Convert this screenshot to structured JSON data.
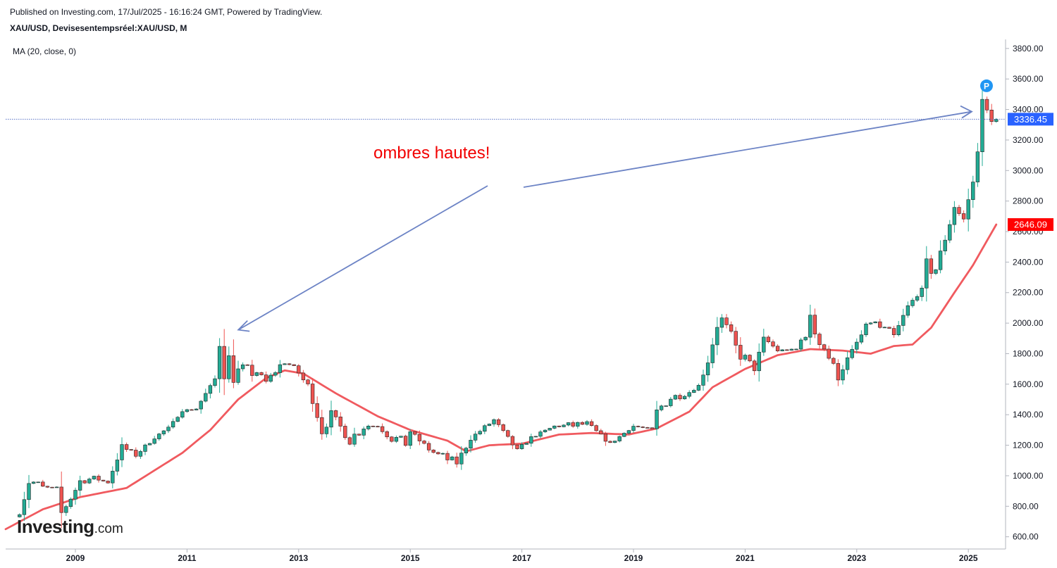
{
  "header": {
    "published": "Published on Investing.com, 17/Jul/2025 - 16:16:24 GMT, Powered by TradingView.",
    "symbol": "XAU/USD, Devisesentempsréel:XAU/USD, M",
    "indicator": "MA (20, close, 0)"
  },
  "logo": {
    "main": "Investing",
    "suffix": ".com"
  },
  "colors": {
    "up": "#26a69a",
    "up_fill": "#22ab94",
    "down": "#ef5350",
    "ma": "#f05a5f",
    "arrow": "#6c83c5",
    "price_line": "#5b74c8",
    "last_tag": "#2962ff",
    "ma_tag": "#ff0000",
    "annotation": "#f20000",
    "marker": "#2196f3"
  },
  "chart_data": {
    "type": "candlestick",
    "title": "XAU/USD, Devisesentempsréel:XAU/USD, M",
    "interval": "monthly",
    "x_range": [
      "2007-10",
      "2025-09"
    ],
    "ylim": [
      520,
      3850
    ],
    "y_ticks": [
      600,
      800,
      1000,
      1200,
      1400,
      1600,
      1800,
      2000,
      2200,
      2400,
      2600,
      2800,
      3000,
      3200,
      3400,
      3600,
      3800
    ],
    "y_tick_labels": [
      "600.00",
      "800.00",
      "1000.00",
      "1200.00",
      "1400.00",
      "1600.00",
      "1800.00",
      "2000.00",
      "2200.00",
      "2400.00",
      "2600.00",
      "2800.00",
      "3000.00",
      "3200.00",
      "3400.00",
      "3600.00",
      "3800.00"
    ],
    "x_ticks": [
      "2009",
      "2011",
      "2013",
      "2015",
      "2017",
      "2019",
      "2021",
      "2023",
      "2025"
    ],
    "grid": false,
    "last_price": 3336.45,
    "last_price_label": "3336.45",
    "ma_value_label": "2646.09",
    "annotation": "ombres hautes!",
    "marker_label": "P",
    "anchors": [
      [
        "2008-01",
        745,
        780
      ],
      [
        "2008-03",
        910,
        1030
      ],
      [
        "2008-06",
        910,
        940
      ],
      [
        "2008-09",
        880,
        930
      ],
      [
        "2008-10",
        730,
        780
      ],
      [
        "2008-12",
        840,
        860
      ],
      [
        "2009-02",
        940,
        990
      ],
      [
        "2009-05",
        970,
        1000
      ],
      [
        "2009-08",
        950,
        960
      ],
      [
        "2009-11",
        1170,
        1210
      ],
      [
        "2010-02",
        1120,
        1150
      ],
      [
        "2010-06",
        1240,
        1260
      ],
      [
        "2010-09",
        1310,
        1320
      ],
      [
        "2010-12",
        1420,
        1430
      ],
      [
        "2011-03",
        1430,
        1450
      ],
      [
        "2011-07",
        1630,
        1640
      ],
      [
        "2011-08",
        1830,
        1910
      ],
      [
        "2011-09",
        1620,
        1910
      ],
      [
        "2011-12",
        1570,
        1760
      ],
      [
        "2012-04",
        1660,
        1700
      ],
      [
        "2012-06",
        1600,
        1630
      ],
      [
        "2012-10",
        1720,
        1790
      ],
      [
        "2013-01",
        1660,
        1690
      ],
      [
        "2013-04",
        1470,
        1590
      ],
      [
        "2013-06",
        1230,
        1420
      ],
      [
        "2013-08",
        1390,
        1430
      ],
      [
        "2013-12",
        1200,
        1260
      ],
      [
        "2014-03",
        1280,
        1390
      ],
      [
        "2014-06",
        1320,
        1330
      ],
      [
        "2014-09",
        1210,
        1300
      ],
      [
        "2014-12",
        1180,
        1240
      ],
      [
        "2015-01",
        1280,
        1300
      ],
      [
        "2015-04",
        1180,
        1220
      ],
      [
        "2015-07",
        1090,
        1170
      ],
      [
        "2015-11",
        1060,
        1110
      ],
      [
        "2016-02",
        1230,
        1260
      ],
      [
        "2016-07",
        1350,
        1380
      ],
      [
        "2016-12",
        1150,
        1180
      ],
      [
        "2017-03",
        1240,
        1260
      ],
      [
        "2017-08",
        1320,
        1330
      ],
      [
        "2017-12",
        1300,
        1360
      ],
      [
        "2018-03",
        1320,
        1360
      ],
      [
        "2018-08",
        1200,
        1220
      ],
      [
        "2019-01",
        1320,
        1330
      ],
      [
        "2019-05",
        1300,
        1310
      ],
      [
        "2019-06",
        1410,
        1440
      ],
      [
        "2019-09",
        1470,
        1560
      ],
      [
        "2019-12",
        1520,
        1530
      ],
      [
        "2020-03",
        1580,
        1600
      ],
      [
        "2020-05",
        1730,
        1770
      ],
      [
        "2020-07",
        1970,
        1980
      ],
      [
        "2020-08",
        1960,
        2070
      ],
      [
        "2020-11",
        1770,
        1890
      ],
      [
        "2021-03",
        1680,
        1720
      ],
      [
        "2021-05",
        1900,
        1910
      ],
      [
        "2021-08",
        1810,
        1830
      ],
      [
        "2021-12",
        1830,
        1830
      ],
      [
        "2022-03",
        1930,
        2070
      ],
      [
        "2022-06",
        1800,
        1880
      ],
      [
        "2022-09",
        1620,
        1680
      ],
      [
        "2022-12",
        1820,
        1830
      ],
      [
        "2023-04",
        1980,
        2050
      ],
      [
        "2023-09",
        1850,
        1950
      ],
      [
        "2023-12",
        2060,
        2140
      ],
      [
        "2024-03",
        2230,
        2230
      ],
      [
        "2024-04",
        2290,
        2430
      ],
      [
        "2024-06",
        2320,
        2390
      ],
      [
        "2024-09",
        2630,
        2680
      ],
      [
        "2024-10",
        2740,
        2790
      ],
      [
        "2024-12",
        2620,
        2720
      ],
      [
        "2025-01",
        2800,
        2820
      ],
      [
        "2025-02",
        2860,
        2960
      ],
      [
        "2025-03",
        3120,
        3170
      ],
      [
        "2025-04",
        3290,
        3500
      ],
      [
        "2025-05",
        3290,
        3450
      ],
      [
        "2025-06",
        3300,
        3450
      ],
      [
        "2025-07",
        3336.45,
        3380
      ]
    ],
    "ma_series": [
      [
        "2007-10",
        650
      ],
      [
        "2008-06",
        780
      ],
      [
        "2009-02",
        860
      ],
      [
        "2009-12",
        920
      ],
      [
        "2010-12",
        1150
      ],
      [
        "2011-06",
        1300
      ],
      [
        "2011-12",
        1500
      ],
      [
        "2012-06",
        1640
      ],
      [
        "2012-10",
        1690
      ],
      [
        "2013-02",
        1670
      ],
      [
        "2013-09",
        1540
      ],
      [
        "2014-06",
        1390
      ],
      [
        "2015-01",
        1300
      ],
      [
        "2015-09",
        1230
      ],
      [
        "2016-01",
        1160
      ],
      [
        "2016-06",
        1200
      ],
      [
        "2017-01",
        1210
      ],
      [
        "2017-09",
        1270
      ],
      [
        "2018-04",
        1280
      ],
      [
        "2018-12",
        1270
      ],
      [
        "2019-06",
        1310
      ],
      [
        "2020-01",
        1420
      ],
      [
        "2020-06",
        1580
      ],
      [
        "2021-01",
        1700
      ],
      [
        "2021-08",
        1790
      ],
      [
        "2022-03",
        1830
      ],
      [
        "2022-10",
        1820
      ],
      [
        "2023-04",
        1800
      ],
      [
        "2023-09",
        1850
      ],
      [
        "2024-01",
        1860
      ],
      [
        "2024-05",
        1970
      ],
      [
        "2024-10",
        2200
      ],
      [
        "2025-02",
        2380
      ],
      [
        "2025-07",
        2646.09
      ]
    ]
  }
}
